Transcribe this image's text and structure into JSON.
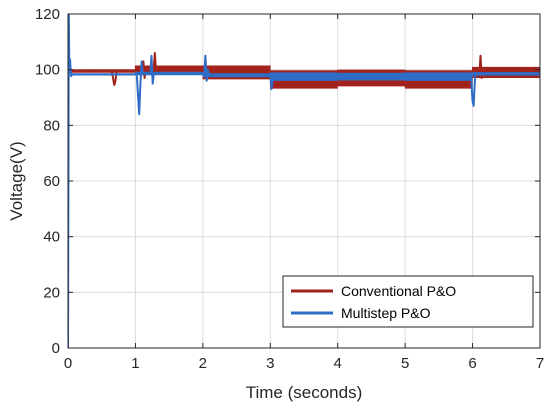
{
  "chart_data": {
    "type": "line",
    "xlabel": "Time (seconds)",
    "ylabel": "Voltage(V)",
    "xlim": [
      0,
      7
    ],
    "ylim": [
      0,
      120
    ],
    "xticks": [
      0,
      1,
      2,
      3,
      4,
      5,
      6,
      7
    ],
    "yticks": [
      0,
      20,
      40,
      60,
      80,
      100,
      120
    ],
    "xtick_labels": [
      "0",
      "1",
      "2",
      "3",
      "4",
      "5",
      "6",
      "7"
    ],
    "ytick_labels": [
      "0",
      "20",
      "40",
      "60",
      "80",
      "100",
      "120"
    ],
    "grid": true,
    "legend_position": "bottom-right",
    "series": [
      {
        "name": "Conventional P&O",
        "color": "#a2231c",
        "segments": [
          {
            "t0": 0.0,
            "t1": 0.04,
            "center": 99.5,
            "half_amplitude": 0.8
          },
          {
            "t0": 0.04,
            "t1": 1.0,
            "center": 99.5,
            "half_amplitude": 0.6
          },
          {
            "t0": 1.0,
            "t1": 2.0,
            "center": 100.0,
            "half_amplitude": 1.5
          },
          {
            "t0": 2.0,
            "t1": 3.0,
            "center": 99.0,
            "half_amplitude": 2.5
          },
          {
            "t0": 3.0,
            "t1": 4.0,
            "center": 96.5,
            "half_amplitude": 3.3
          },
          {
            "t0": 4.0,
            "t1": 5.0,
            "center": 97.0,
            "half_amplitude": 3.0
          },
          {
            "t0": 5.0,
            "t1": 6.0,
            "center": 96.5,
            "half_amplitude": 3.3
          },
          {
            "t0": 6.0,
            "t1": 7.0,
            "center": 99.0,
            "half_amplitude": 2.0
          }
        ],
        "transients": [
          {
            "t": 0.65,
            "values": [
              99.5,
              97.0,
              94.5,
              96.0,
              99.5
            ]
          },
          {
            "t": 1.1,
            "values": [
              99.5,
              103.0,
              97.0,
              100.0
            ]
          },
          {
            "t": 1.27,
            "values": [
              100.0,
              106.0,
              99.0,
              100.0
            ]
          },
          {
            "t": 6.1,
            "values": [
              98.0,
              105.0,
              97.0,
              99.0
            ]
          }
        ]
      },
      {
        "name": "Multistep P&O",
        "color": "#2f6cc6",
        "startup": {
          "t": [
            0.0,
            0.012,
            0.02,
            0.03,
            0.045,
            0.06
          ],
          "values": [
            0.0,
            120.0,
            99.0,
            104.0,
            97.5,
            98.5
          ]
        },
        "segments": [
          {
            "t0": 0.06,
            "t1": 1.0,
            "center": 98.3,
            "half_amplitude": 0.35
          },
          {
            "t0": 1.0,
            "t1": 2.0,
            "center": 98.6,
            "half_amplitude": 0.6
          },
          {
            "t0": 2.0,
            "t1": 3.0,
            "center": 98.0,
            "half_amplitude": 0.7
          },
          {
            "t0": 3.0,
            "t1": 4.0,
            "center": 97.5,
            "half_amplitude": 1.5
          },
          {
            "t0": 4.0,
            "t1": 5.0,
            "center": 97.5,
            "half_amplitude": 1.4
          },
          {
            "t0": 5.0,
            "t1": 6.0,
            "center": 97.5,
            "half_amplitude": 1.5
          },
          {
            "t0": 6.0,
            "t1": 7.0,
            "center": 98.5,
            "half_amplitude": 0.6
          }
        ],
        "transients": [
          {
            "t": 1.02,
            "values": [
              98.0,
              91.0,
              84.0,
              95.0,
              103.0,
              98.0
            ]
          },
          {
            "t": 1.22,
            "values": [
              98.0,
              105.0,
              95.0,
              99.0
            ]
          },
          {
            "t": 2.02,
            "values": [
              98.5,
              105.0,
              96.0,
              100.0,
              98.5
            ]
          },
          {
            "t": 3.0,
            "values": [
              98.0,
              93.0,
              96.0,
              98.0
            ]
          },
          {
            "t": 5.98,
            "values": [
              97.5,
              89.0,
              87.0,
              96.0,
              99.0
            ]
          }
        ]
      }
    ]
  }
}
